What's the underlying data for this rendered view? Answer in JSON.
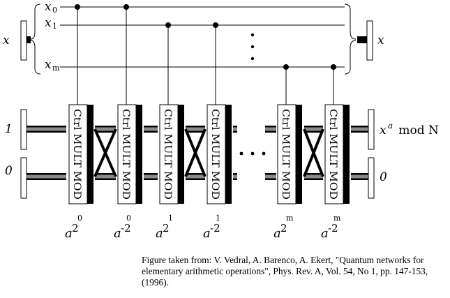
{
  "register": {
    "input_label": "x",
    "output_label": "x",
    "qubits": [
      {
        "base": "x",
        "sub": "0"
      },
      {
        "base": "x",
        "sub": "1"
      },
      {
        "base": "x",
        "sub": "m"
      }
    ],
    "vdots": "⋮"
  },
  "work_register": {
    "top_in": "1",
    "bottom_in": "0",
    "top_out_base": "x",
    "top_out_sup": "a",
    "top_out_rest": " mod N",
    "bottom_out": "0"
  },
  "gate_label": "Ctrl MULT MOD",
  "hdots": "• • •",
  "gates": [
    {
      "base": "a",
      "sup": "2",
      "sup2": "0"
    },
    {
      "base": "a",
      "sup": "-2",
      "sup2": "0"
    },
    {
      "base": "a",
      "sup": "2",
      "sup2": "1"
    },
    {
      "base": "a",
      "sup": "-2",
      "sup2": "1"
    },
    {
      "base": "a",
      "sup": "2",
      "sup2": "m"
    },
    {
      "base": "a",
      "sup": "-2",
      "sup2": "m"
    }
  ],
  "caption": "Figure taken from: V. Vedral, A. Barenco, A. Ekert, \"Quantum networks for elementary arithmetic operations\", Phys. Rev. A, Vol. 54, No 1, pp. 147-153, (1996)."
}
